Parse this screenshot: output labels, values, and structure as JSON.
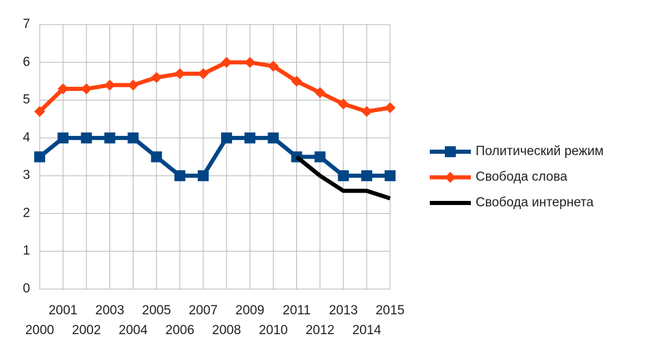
{
  "chart_data": {
    "type": "line",
    "categories": [
      "2000",
      "2001",
      "2002",
      "2003",
      "2004",
      "2005",
      "2006",
      "2007",
      "2008",
      "2009",
      "2010",
      "2011",
      "2012",
      "2013",
      "2014",
      "2015"
    ],
    "series": [
      {
        "name": "Политический режим",
        "color": "#004586",
        "marker": "square",
        "values": [
          3.5,
          4,
          4,
          4,
          4,
          3.5,
          3,
          3,
          4,
          4,
          4,
          3.5,
          3.5,
          3,
          3,
          3
        ]
      },
      {
        "name": "Свобода слова",
        "color": "#ff420e",
        "marker": "diamond",
        "values": [
          4.7,
          5.3,
          5.3,
          5.4,
          5.4,
          5.6,
          5.7,
          5.7,
          6,
          6,
          5.9,
          5.5,
          5.2,
          4.9,
          4.7,
          4.8
        ]
      },
      {
        "name": "Свобода интернета",
        "color": "#000000",
        "marker": "none",
        "values": [
          null,
          null,
          null,
          null,
          null,
          null,
          null,
          null,
          null,
          null,
          null,
          3.5,
          3.0,
          2.6,
          2.6,
          2.4
        ]
      }
    ],
    "ylim": [
      0,
      7
    ],
    "yticks": [
      0,
      1,
      2,
      3,
      4,
      5,
      6,
      7
    ],
    "grid": true,
    "legend": "right"
  }
}
